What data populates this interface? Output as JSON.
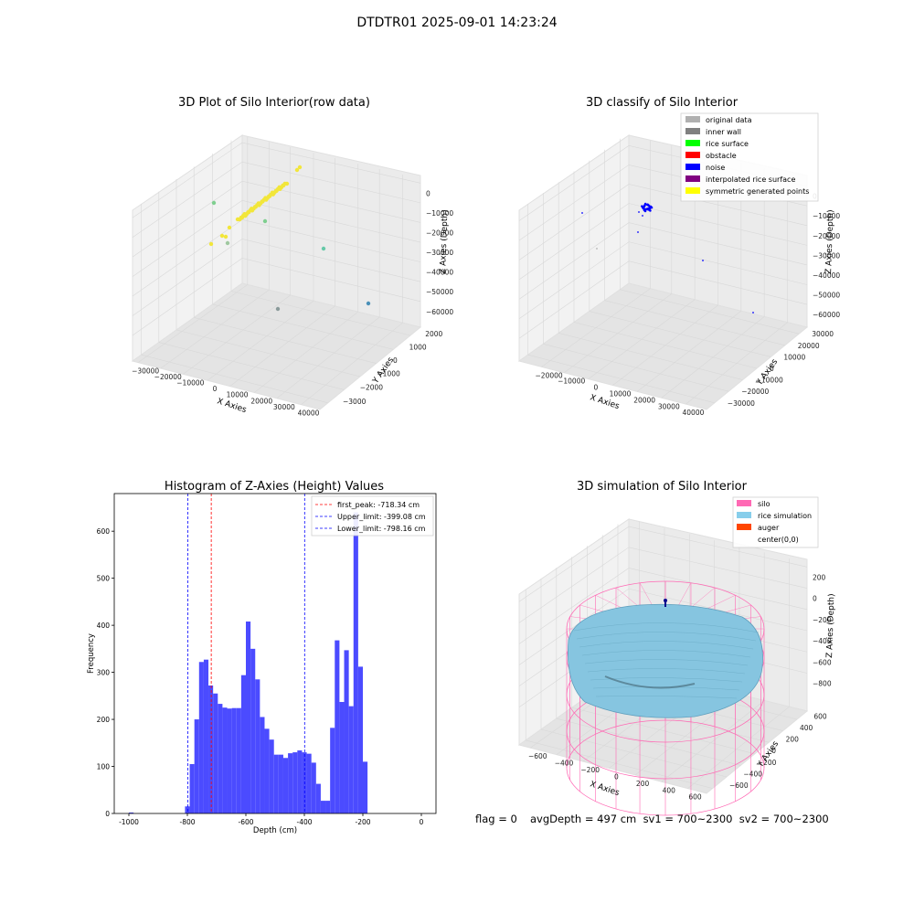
{
  "suptitle": "DTDTR01 2025-09-01 14:23:24",
  "footer": {
    "flag": "flag = 0",
    "stats": "avgDepth = 497 cm  sv1 = 700~2300  sv2 = 700~2300"
  },
  "colors": {
    "hist_bar": "#4b4bff",
    "first_peak": "#ff0000",
    "limits": "#0000ff",
    "rice_raw": "#f2e63a",
    "silo_mesh": "#ff69b4",
    "rice_sim": "#86c5e0",
    "auger": "#ff4500"
  },
  "panel_raw": {
    "title": "3D Plot of Silo Interior(row data)",
    "xlabel": "X Axies",
    "ylabel": "Y Axies",
    "zlabel": "Z Axies (Depth)",
    "xticks": [
      "−30000",
      "−20000",
      "−10000",
      "0",
      "10000",
      "20000",
      "30000",
      "40000"
    ],
    "yticks": [
      "2000",
      "1000",
      "0",
      "−1000",
      "−2000",
      "−3000"
    ],
    "zticks": [
      "0",
      "−10000",
      "−20000",
      "−30000",
      "−40000",
      "−50000",
      "−60000"
    ]
  },
  "panel_class": {
    "title": "3D classify of Silo Interior",
    "xlabel": "X Axies",
    "ylabel": "Y Axies",
    "zlabel": "Z Axies (Depth)",
    "xticks": [
      "−20000",
      "−10000",
      "0",
      "10000",
      "20000",
      "30000",
      "40000"
    ],
    "yticks": [
      "30000",
      "20000",
      "10000",
      "0",
      "−10000",
      "−20000",
      "−30000"
    ],
    "zticks": [
      "0",
      "−10000",
      "−20000",
      "−30000",
      "−40000",
      "−50000",
      "−60000"
    ],
    "legend": [
      {
        "label": "original data",
        "color": "#b0b0b0"
      },
      {
        "label": "inner wall",
        "color": "#808080"
      },
      {
        "label": "rice surface",
        "color": "#00ff00"
      },
      {
        "label": "obstacle",
        "color": "#ff0000"
      },
      {
        "label": "noise",
        "color": "#0000ff"
      },
      {
        "label": "interpolated rice surface",
        "color": "#800080"
      },
      {
        "label": "symmetric generated points",
        "color": "#ffff00"
      }
    ]
  },
  "panel_sim": {
    "title": "3D simulation of Silo Interior",
    "xlabel": "X Axies",
    "ylabel": "Y Axies",
    "zlabel": "Z Axies (Depth)",
    "xticks": [
      "−600",
      "−400",
      "−200",
      "0",
      "200",
      "400",
      "600"
    ],
    "yticks": [
      "600",
      "400",
      "200",
      "0",
      "−200",
      "−400",
      "−600"
    ],
    "zticks": [
      "200",
      "0",
      "−200",
      "−400",
      "−600",
      "−800"
    ],
    "legend": [
      {
        "label": "silo",
        "color": "#ff69b4"
      },
      {
        "label": "rice simulation",
        "color": "#87ceeb"
      },
      {
        "label": "auger",
        "color": "#ff4500"
      },
      {
        "label": "center(0,0)",
        "color": "none"
      }
    ]
  },
  "chart_data": {
    "type": "bar",
    "title": "Histogram of Z-Axies (Height) Values",
    "xlabel": "Depth (cm)",
    "ylabel": "Frequency",
    "xlim": [
      -1050,
      50
    ],
    "ylim": [
      0,
      680
    ],
    "xticks": [
      -1000,
      -800,
      -600,
      -400,
      -200,
      0
    ],
    "yticks": [
      0,
      100,
      200,
      300,
      400,
      500,
      600
    ],
    "bin_width": 16,
    "bins": [
      {
        "x": -1000,
        "y": 2
      },
      {
        "x": -808,
        "y": 15
      },
      {
        "x": -792,
        "y": 105
      },
      {
        "x": -776,
        "y": 200
      },
      {
        "x": -760,
        "y": 322
      },
      {
        "x": -744,
        "y": 327
      },
      {
        "x": -728,
        "y": 272
      },
      {
        "x": -712,
        "y": 255
      },
      {
        "x": -696,
        "y": 233
      },
      {
        "x": -680,
        "y": 225
      },
      {
        "x": -664,
        "y": 223
      },
      {
        "x": -648,
        "y": 224
      },
      {
        "x": -632,
        "y": 224
      },
      {
        "x": -616,
        "y": 294
      },
      {
        "x": -600,
        "y": 408
      },
      {
        "x": -584,
        "y": 350
      },
      {
        "x": -568,
        "y": 285
      },
      {
        "x": -552,
        "y": 205
      },
      {
        "x": -536,
        "y": 180
      },
      {
        "x": -520,
        "y": 157
      },
      {
        "x": -504,
        "y": 125
      },
      {
        "x": -488,
        "y": 125
      },
      {
        "x": -472,
        "y": 118
      },
      {
        "x": -456,
        "y": 128
      },
      {
        "x": -440,
        "y": 130
      },
      {
        "x": -424,
        "y": 134
      },
      {
        "x": -408,
        "y": 130
      },
      {
        "x": -392,
        "y": 127
      },
      {
        "x": -376,
        "y": 108
      },
      {
        "x": -360,
        "y": 63
      },
      {
        "x": -344,
        "y": 27
      },
      {
        "x": -328,
        "y": 27
      },
      {
        "x": -312,
        "y": 182
      },
      {
        "x": -296,
        "y": 368
      },
      {
        "x": -280,
        "y": 237
      },
      {
        "x": -264,
        "y": 347
      },
      {
        "x": -248,
        "y": 228
      },
      {
        "x": -232,
        "y": 640
      },
      {
        "x": -216,
        "y": 312
      },
      {
        "x": -200,
        "y": 110
      }
    ],
    "vlines": [
      {
        "label": "first_peak: -718.34 cm",
        "x": -718.34,
        "color": "#ff0000"
      },
      {
        "label": "Upper_limit: -399.08 cm",
        "x": -399.08,
        "color": "#0000ff"
      },
      {
        "label": "Lower_limit: -798.16 cm",
        "x": -798.16,
        "color": "#0000ff"
      }
    ]
  }
}
